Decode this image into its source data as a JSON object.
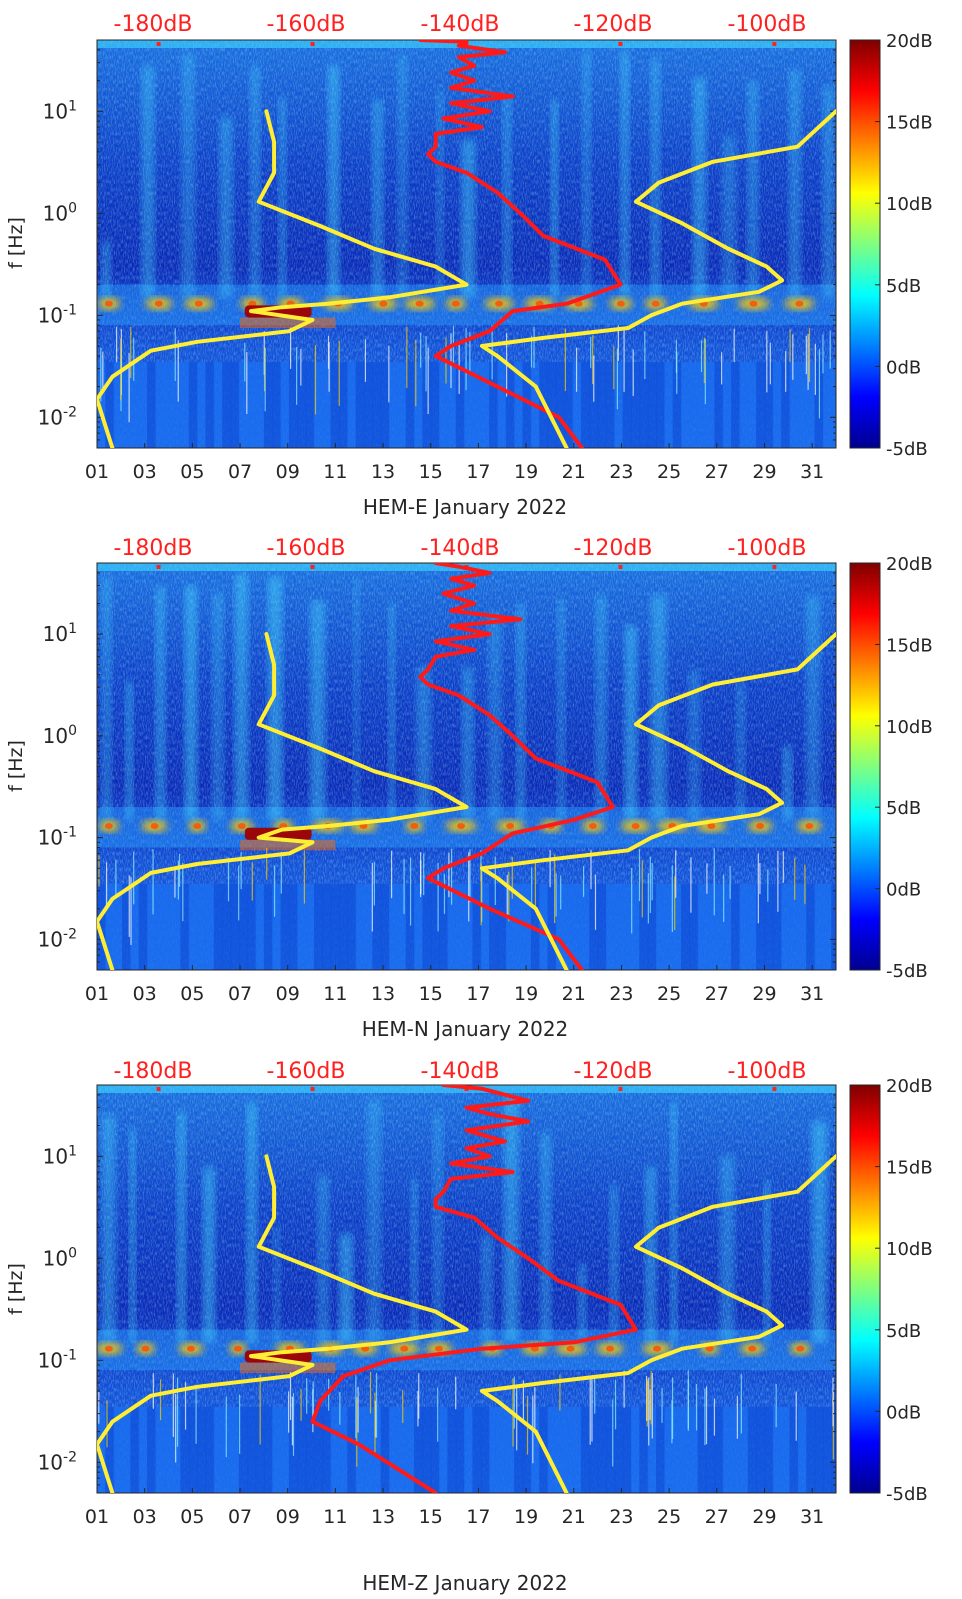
{
  "colors": {
    "peterson_curve": "#ff1a1a",
    "median_curve": "#ffee33",
    "top_axis_text": "#ff2020",
    "axis_text": "#262626"
  },
  "colorbar": {
    "ticks": [
      "20dB",
      "15dB",
      "10dB",
      "5dB",
      "0dB",
      "-5dB"
    ],
    "values": [
      20,
      15,
      10,
      5,
      0,
      -5
    ],
    "range": [
      -5,
      20
    ],
    "colormap": "jet"
  },
  "chart_data": [
    {
      "type": "heatmap",
      "title": "",
      "xlabel": "HEM-E January 2022",
      "ylabel": "f [Hz]",
      "x_ticks": [
        "01",
        "03",
        "05",
        "07",
        "09",
        "11",
        "13",
        "15",
        "17",
        "19",
        "21",
        "23",
        "25",
        "27",
        "29",
        "31"
      ],
      "y_ticks": [
        "10^1",
        "10^0",
        "10^-1",
        "10^-2"
      ],
      "y_scale": "log",
      "xlim": [
        1,
        32
      ],
      "ylim": [
        0.005,
        50
      ],
      "top_axis_ticks": [
        "-180dB",
        "-160dB",
        "-140dB",
        "-120dB",
        "-100dB"
      ],
      "top_axis_values": [
        -180,
        -160,
        -140,
        -120,
        -100
      ],
      "top_axis_range": [
        -188,
        -92
      ],
      "colorbar_range": [
        -5,
        20
      ],
      "series": [
        {
          "style": "red",
          "points": [
            [
              -146,
              50
            ],
            [
              -140,
              48
            ],
            [
              -141,
              44
            ],
            [
              -135,
              38
            ],
            [
              -141,
              34
            ],
            [
              -139,
              28
            ],
            [
              -142,
              24
            ],
            [
              -139,
              20
            ],
            [
              -142,
              17
            ],
            [
              -134,
              14
            ],
            [
              -142,
              12
            ],
            [
              -137,
              10
            ],
            [
              -143,
              8.5
            ],
            [
              -138,
              7
            ],
            [
              -144,
              6
            ],
            [
              -144,
              4.5
            ],
            [
              -145,
              3.8
            ],
            [
              -144,
              3.2
            ],
            [
              -140,
              2.5
            ],
            [
              -136,
              1.6
            ],
            [
              -133,
              1
            ],
            [
              -130,
              0.6
            ],
            [
              -122,
              0.35
            ],
            [
              -120,
              0.2
            ],
            [
              -127,
              0.13
            ],
            [
              -134,
              0.11
            ],
            [
              -137,
              0.07
            ],
            [
              -142,
              0.05
            ],
            [
              -144,
              0.04
            ],
            [
              -136,
              0.02
            ],
            [
              -128,
              0.01
            ],
            [
              -125,
              0.005
            ]
          ]
        },
        {
          "style": "yellow",
          "points": [
            [
              -166,
              10
            ],
            [
              -165,
              5
            ],
            [
              -165,
              2.5
            ],
            [
              -167,
              1.3
            ],
            [
              -159,
              0.75
            ],
            [
              -152,
              0.45
            ],
            [
              -144,
              0.3
            ],
            [
              -140,
              0.2
            ],
            [
              -150,
              0.15
            ],
            [
              -158,
              0.13
            ],
            [
              -164,
              0.12
            ],
            [
              -168,
              0.11
            ],
            [
              -160,
              0.09
            ],
            [
              -163,
              0.07
            ],
            [
              -175,
              0.055
            ],
            [
              -181,
              0.045
            ],
            [
              -186,
              0.025
            ],
            [
              -188,
              0.015
            ],
            [
              -186,
              0.005
            ]
          ]
        },
        {
          "style": "yellow",
          "points": [
            [
              -92,
              10
            ],
            [
              -97,
              4.5
            ],
            [
              -108,
              3.2
            ],
            [
              -115,
              2
            ],
            [
              -118,
              1.3
            ],
            [
              -112,
              0.8
            ],
            [
              -106,
              0.45
            ],
            [
              -101,
              0.3
            ],
            [
              -99,
              0.22
            ],
            [
              -102,
              0.17
            ],
            [
              -112,
              0.13
            ],
            [
              -116,
              0.1
            ],
            [
              -119,
              0.075
            ],
            [
              -130,
              0.06
            ],
            [
              -138,
              0.05
            ],
            [
              -136,
              0.04
            ],
            [
              -131,
              0.02
            ],
            [
              -127,
              0.005
            ]
          ]
        }
      ],
      "legend": "none"
    },
    {
      "type": "heatmap",
      "title": "",
      "xlabel": "HEM-N January 2022",
      "ylabel": "f [Hz]",
      "x_ticks": [
        "01",
        "03",
        "05",
        "07",
        "09",
        "11",
        "13",
        "15",
        "17",
        "19",
        "21",
        "23",
        "25",
        "27",
        "29",
        "31"
      ],
      "y_ticks": [
        "10^1",
        "10^0",
        "10^-1",
        "10^-2"
      ],
      "y_scale": "log",
      "xlim": [
        1,
        32
      ],
      "ylim": [
        0.005,
        50
      ],
      "top_axis_ticks": [
        "-180dB",
        "-160dB",
        "-140dB",
        "-120dB",
        "-100dB"
      ],
      "top_axis_values": [
        -180,
        -160,
        -140,
        -120,
        -100
      ],
      "top_axis_range": [
        -188,
        -92
      ],
      "colorbar_range": [
        -5,
        20
      ],
      "series": [
        {
          "style": "red",
          "points": [
            [
              -144,
              50
            ],
            [
              -141,
              46
            ],
            [
              -137,
              40
            ],
            [
              -142,
              35
            ],
            [
              -139,
              30
            ],
            [
              -143,
              25
            ],
            [
              -139,
              20
            ],
            [
              -142,
              17
            ],
            [
              -133,
              14
            ],
            [
              -142,
              12
            ],
            [
              -137,
              10
            ],
            [
              -144,
              8.5
            ],
            [
              -139,
              7
            ],
            [
              -144,
              6
            ],
            [
              -145,
              4.5
            ],
            [
              -146,
              3.8
            ],
            [
              -145,
              3.2
            ],
            [
              -141,
              2.5
            ],
            [
              -137,
              1.6
            ],
            [
              -134,
              1
            ],
            [
              -131,
              0.6
            ],
            [
              -123,
              0.35
            ],
            [
              -121,
              0.2
            ],
            [
              -126,
              0.15
            ],
            [
              -134,
              0.11
            ],
            [
              -138,
              0.07
            ],
            [
              -143,
              0.05
            ],
            [
              -145,
              0.04
            ],
            [
              -137,
              0.02
            ],
            [
              -128,
              0.01
            ],
            [
              -125,
              0.005
            ]
          ]
        },
        {
          "style": "yellow",
          "points": [
            [
              -166,
              10
            ],
            [
              -165,
              5
            ],
            [
              -165,
              2.5
            ],
            [
              -167,
              1.3
            ],
            [
              -159,
              0.75
            ],
            [
              -152,
              0.45
            ],
            [
              -144,
              0.3
            ],
            [
              -140,
              0.2
            ],
            [
              -150,
              0.15
            ],
            [
              -158,
              0.13
            ],
            [
              -164,
              0.12
            ],
            [
              -167,
              0.1
            ],
            [
              -160,
              0.09
            ],
            [
              -163,
              0.07
            ],
            [
              -175,
              0.055
            ],
            [
              -181,
              0.045
            ],
            [
              -186,
              0.025
            ],
            [
              -188,
              0.015
            ],
            [
              -186,
              0.005
            ]
          ]
        },
        {
          "style": "yellow",
          "points": [
            [
              -92,
              10
            ],
            [
              -97,
              4.5
            ],
            [
              -108,
              3.2
            ],
            [
              -115,
              2
            ],
            [
              -118,
              1.3
            ],
            [
              -112,
              0.8
            ],
            [
              -106,
              0.45
            ],
            [
              -101,
              0.3
            ],
            [
              -99,
              0.22
            ],
            [
              -102,
              0.17
            ],
            [
              -112,
              0.13
            ],
            [
              -116,
              0.1
            ],
            [
              -119,
              0.075
            ],
            [
              -130,
              0.06
            ],
            [
              -138,
              0.05
            ],
            [
              -136,
              0.04
            ],
            [
              -131,
              0.02
            ],
            [
              -127,
              0.005
            ]
          ]
        }
      ],
      "legend": "none"
    },
    {
      "type": "heatmap",
      "title": "",
      "xlabel": "HEM-Z January 2022",
      "ylabel": "f [Hz]",
      "x_ticks": [
        "01",
        "03",
        "05",
        "07",
        "09",
        "11",
        "13",
        "15",
        "17",
        "19",
        "21",
        "23",
        "25",
        "27",
        "29",
        "31"
      ],
      "y_ticks": [
        "10^1",
        "10^0",
        "10^-1",
        "10^-2"
      ],
      "y_scale": "log",
      "xlim": [
        1,
        32
      ],
      "ylim": [
        0.005,
        50
      ],
      "top_axis_ticks": [
        "-180dB",
        "-160dB",
        "-140dB",
        "-120dB",
        "-100dB"
      ],
      "top_axis_values": [
        -180,
        -160,
        -140,
        -120,
        -100
      ],
      "top_axis_range": [
        -188,
        -92
      ],
      "colorbar_range": [
        -5,
        20
      ],
      "series": [
        {
          "style": "red",
          "points": [
            [
              -143,
              50
            ],
            [
              -138,
              46
            ],
            [
              -132,
              35
            ],
            [
              -140,
              30
            ],
            [
              -137,
              26
            ],
            [
              -132,
              22
            ],
            [
              -140,
              18
            ],
            [
              -135,
              14
            ],
            [
              -140,
              12
            ],
            [
              -137,
              10
            ],
            [
              -142,
              8.5
            ],
            [
              -134,
              7
            ],
            [
              -142,
              6
            ],
            [
              -143,
              4.5
            ],
            [
              -144,
              3.8
            ],
            [
              -144,
              3.2
            ],
            [
              -139,
              2.5
            ],
            [
              -136,
              1.6
            ],
            [
              -132,
              1
            ],
            [
              -128,
              0.6
            ],
            [
              -120,
              0.35
            ],
            [
              -118,
              0.2
            ],
            [
              -126,
              0.15
            ],
            [
              -138,
              0.13
            ],
            [
              -150,
              0.1
            ],
            [
              -156,
              0.07
            ],
            [
              -159,
              0.04
            ],
            [
              -160,
              0.025
            ],
            [
              -154,
              0.015
            ],
            [
              -144,
              0.005
            ]
          ]
        },
        {
          "style": "yellow",
          "points": [
            [
              -166,
              10
            ],
            [
              -165,
              5
            ],
            [
              -165,
              2.5
            ],
            [
              -167,
              1.3
            ],
            [
              -159,
              0.75
            ],
            [
              -152,
              0.45
            ],
            [
              -144,
              0.3
            ],
            [
              -140,
              0.2
            ],
            [
              -150,
              0.15
            ],
            [
              -158,
              0.13
            ],
            [
              -164,
              0.12
            ],
            [
              -168,
              0.11
            ],
            [
              -160,
              0.09
            ],
            [
              -163,
              0.07
            ],
            [
              -175,
              0.055
            ],
            [
              -181,
              0.045
            ],
            [
              -186,
              0.025
            ],
            [
              -188,
              0.015
            ],
            [
              -186,
              0.005
            ]
          ]
        },
        {
          "style": "yellow",
          "points": [
            [
              -92,
              10
            ],
            [
              -97,
              4.5
            ],
            [
              -108,
              3.2
            ],
            [
              -115,
              2
            ],
            [
              -118,
              1.3
            ],
            [
              -112,
              0.8
            ],
            [
              -106,
              0.45
            ],
            [
              -101,
              0.3
            ],
            [
              -99,
              0.22
            ],
            [
              -102,
              0.17
            ],
            [
              -112,
              0.13
            ],
            [
              -116,
              0.1
            ],
            [
              -119,
              0.075
            ],
            [
              -130,
              0.06
            ],
            [
              -138,
              0.05
            ],
            [
              -136,
              0.04
            ],
            [
              -131,
              0.02
            ],
            [
              -127,
              0.005
            ]
          ]
        }
      ],
      "legend": "none"
    }
  ]
}
